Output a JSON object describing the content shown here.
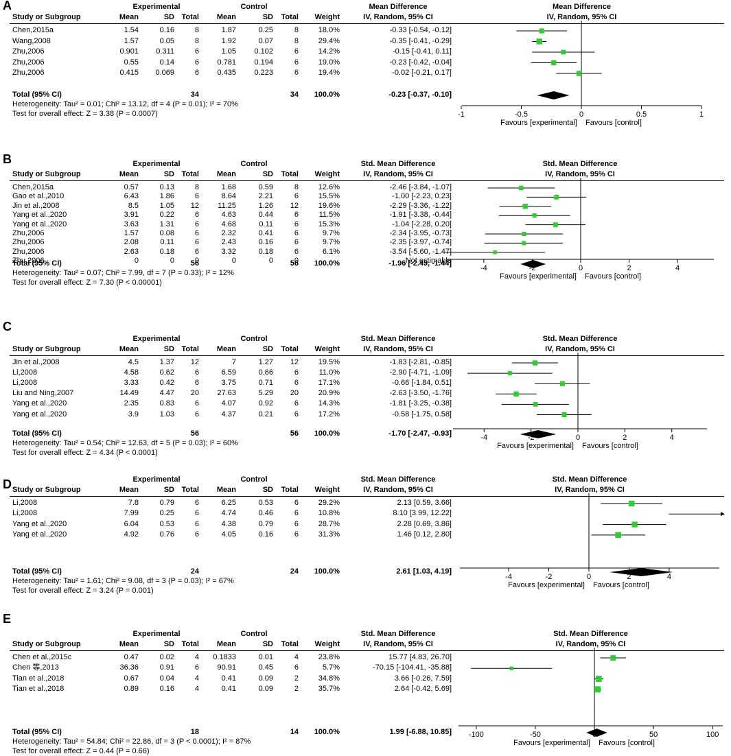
{
  "headers": {
    "study": "Study or Subgroup",
    "experimental": "Experimental",
    "control": "Control",
    "mean": "Mean",
    "sd": "SD",
    "total": "Total",
    "weight": "Weight",
    "ci_method": "IV, Random, 95% CI",
    "total_label": "Total (95% CI)",
    "fav_exp": "Favours [experimental]",
    "fav_ctrl": "Favours [control]"
  },
  "colors": {
    "marker": "#33cc33",
    "line": "#000000"
  },
  "chart_data": [
    {
      "label": "A",
      "type": "forest",
      "measure": "Mean Difference",
      "xlim": [
        -1,
        1
      ],
      "ticks": [
        "-1",
        "-0.5",
        "0",
        "0.5",
        "1"
      ],
      "studies": [
        {
          "name": "Chen,2015a",
          "em": "1.54",
          "esd": "0.16",
          "en": "8",
          "cm": "1.87",
          "csd": "0.25",
          "cn": "8",
          "w": "18.0%",
          "ci": "-0.33 [-0.54, -0.12]",
          "est": -0.33,
          "lo": -0.54,
          "hi": -0.12,
          "wt": 18.0
        },
        {
          "name": "Wang,2008",
          "em": "1.57",
          "esd": "0.05",
          "en": "8",
          "cm": "1.92",
          "csd": "0.07",
          "cn": "8",
          "w": "29.4%",
          "ci": "-0.35 [-0.41, -0.29]",
          "est": -0.35,
          "lo": -0.41,
          "hi": -0.29,
          "wt": 29.4
        },
        {
          "name": "Zhu,2006",
          "em": "0.901",
          "esd": "0.311",
          "en": "6",
          "cm": "1.05",
          "csd": "0.102",
          "cn": "6",
          "w": "14.2%",
          "ci": "-0.15 [-0.41, 0.11]",
          "est": -0.15,
          "lo": -0.41,
          "hi": 0.11,
          "wt": 14.2
        },
        {
          "name": "Zhu,2006",
          "em": "0.55",
          "esd": "0.14",
          "en": "6",
          "cm": "0.781",
          "csd": "0.194",
          "cn": "6",
          "w": "19.0%",
          "ci": "-0.23 [-0.42, -0.04]",
          "est": -0.23,
          "lo": -0.42,
          "hi": -0.04,
          "wt": 19.0
        },
        {
          "name": "Zhu,2006",
          "em": "0.415",
          "esd": "0.069",
          "en": "6",
          "cm": "0.435",
          "csd": "0.223",
          "cn": "6",
          "w": "19.4%",
          "ci": "-0.02 [-0.21, 0.17]",
          "est": -0.02,
          "lo": -0.21,
          "hi": 0.17,
          "wt": 19.4
        }
      ],
      "total": {
        "en": "34",
        "cn": "34",
        "w": "100.0%",
        "ci": "-0.23 [-0.37, -0.10]",
        "est": -0.23,
        "lo": -0.37,
        "hi": -0.1
      },
      "heterogeneity": "Heterogeneity: Tau² = 0.01; Chi² = 13.12, df = 4 (P = 0.01); I² = 70%",
      "overall": "Test for overall effect: Z = 3.38 (P = 0.0007)"
    },
    {
      "label": "B",
      "type": "forest",
      "measure": "Std. Mean Difference",
      "xlim": [
        -5.5,
        5.5
      ],
      "ticks": [
        "-4",
        "-2",
        "0",
        "2",
        "4"
      ],
      "studies": [
        {
          "name": "Chen,2015a",
          "em": "0.57",
          "esd": "0.13",
          "en": "8",
          "cm": "1.68",
          "csd": "0.59",
          "cn": "8",
          "w": "12.6%",
          "ci": "-2.46 [-3.84, -1.07]",
          "est": -2.46,
          "lo": -3.84,
          "hi": -1.07,
          "wt": 12.6
        },
        {
          "name": "Gao et al.,2010",
          "em": "6.43",
          "esd": "1.86",
          "en": "6",
          "cm": "8.64",
          "csd": "2.21",
          "cn": "6",
          "w": "15.5%",
          "ci": "-1.00 [-2.23, 0.23]",
          "est": -1.0,
          "lo": -2.23,
          "hi": 0.23,
          "wt": 15.5
        },
        {
          "name": "Jin et al.,2008",
          "em": "8.5",
          "esd": "1.05",
          "en": "12",
          "cm": "11.25",
          "csd": "1.26",
          "cn": "12",
          "w": "19.6%",
          "ci": "-2.29 [-3.36, -1.22]",
          "est": -2.29,
          "lo": -3.36,
          "hi": -1.22,
          "wt": 19.6
        },
        {
          "name": "Yang et al.,2020",
          "em": "3.91",
          "esd": "0.22",
          "en": "6",
          "cm": "4.63",
          "csd": "0.44",
          "cn": "6",
          "w": "11.5%",
          "ci": "-1.91 [-3.38, -0.44]",
          "est": -1.91,
          "lo": -3.38,
          "hi": -0.44,
          "wt": 11.5
        },
        {
          "name": "Yang et al.,2020",
          "em": "3.63",
          "esd": "1.31",
          "en": "6",
          "cm": "4.68",
          "csd": "0.11",
          "cn": "6",
          "w": "15.3%",
          "ci": "-1.04 [-2.28, 0.20]",
          "est": -1.04,
          "lo": -2.28,
          "hi": 0.2,
          "wt": 15.3
        },
        {
          "name": "Zhu,2006",
          "em": "1.57",
          "esd": "0.08",
          "en": "6",
          "cm": "2.32",
          "csd": "0.41",
          "cn": "6",
          "w": "9.7%",
          "ci": "-2.34 [-3.95, -0.73]",
          "est": -2.34,
          "lo": -3.95,
          "hi": -0.73,
          "wt": 9.7
        },
        {
          "name": "Zhu,2006",
          "em": "2.08",
          "esd": "0.11",
          "en": "6",
          "cm": "2.43",
          "csd": "0.16",
          "cn": "6",
          "w": "9.7%",
          "ci": "-2.35 [-3.97, -0.74]",
          "est": -2.35,
          "lo": -3.97,
          "hi": -0.74,
          "wt": 9.7
        },
        {
          "name": "Zhu,2006",
          "em": "2.63",
          "esd": "0.18",
          "en": "6",
          "cm": "3.32",
          "csd": "0.18",
          "cn": "6",
          "w": "6.1%",
          "ci": "-3.54 [-5.60, -1.47]",
          "est": -3.54,
          "lo": -5.6,
          "hi": -1.47,
          "wt": 6.1
        },
        {
          "name": "Zhu,2006",
          "em": "0",
          "esd": "0",
          "en": "0",
          "cm": "0",
          "csd": "0",
          "cn": "0",
          "w": "",
          "ci": "Not estimable",
          "est": null,
          "lo": null,
          "hi": null,
          "wt": 0
        }
      ],
      "total": {
        "en": "56",
        "cn": "56",
        "w": "100.0%",
        "ci": "-1.96 [-2.49, -1.44]",
        "est": -1.96,
        "lo": -2.49,
        "hi": -1.44
      },
      "heterogeneity": "Heterogeneity: Tau² = 0.07; Chi² = 7.99, df = 7 (P = 0.33); I² = 12%",
      "overall": "Test for overall effect: Z = 7.30 (P < 0.00001)"
    },
    {
      "label": "C",
      "type": "forest",
      "measure": "Std. Mean Difference",
      "xlim": [
        -5.5,
        5.5
      ],
      "ticks": [
        "-4",
        "-2",
        "0",
        "2",
        "4"
      ],
      "studies": [
        {
          "name": "Jin et al.,2008",
          "em": "4.5",
          "esd": "1.37",
          "en": "12",
          "cm": "7",
          "csd": "1.27",
          "cn": "12",
          "w": "19.5%",
          "ci": "-1.83 [-2.81, -0.85]",
          "est": -1.83,
          "lo": -2.81,
          "hi": -0.85,
          "wt": 19.5
        },
        {
          "name": "Li,2008",
          "em": "4.58",
          "esd": "0.62",
          "en": "6",
          "cm": "6.59",
          "csd": "0.66",
          "cn": "6",
          "w": "11.0%",
          "ci": "-2.90 [-4.71, -1.09]",
          "est": -2.9,
          "lo": -4.71,
          "hi": -1.09,
          "wt": 11.0
        },
        {
          "name": "Li,2008",
          "em": "3.33",
          "esd": "0.42",
          "en": "6",
          "cm": "3.75",
          "csd": "0.71",
          "cn": "6",
          "w": "17.1%",
          "ci": "-0.66 [-1.84, 0.51]",
          "est": -0.66,
          "lo": -1.84,
          "hi": 0.51,
          "wt": 17.1
        },
        {
          "name": "Liu and Ning,2007",
          "em": "14.49",
          "esd": "4.47",
          "en": "20",
          "cm": "27.63",
          "csd": "5.29",
          "cn": "20",
          "w": "20.9%",
          "ci": "-2.63 [-3.50, -1.76]",
          "est": -2.63,
          "lo": -3.5,
          "hi": -1.76,
          "wt": 20.9
        },
        {
          "name": "Yang et al.,2020",
          "em": "2.35",
          "esd": "0.83",
          "en": "6",
          "cm": "4.07",
          "csd": "0.92",
          "cn": "6",
          "w": "14.3%",
          "ci": "-1.81 [-3.25, -0.38]",
          "est": -1.81,
          "lo": -3.25,
          "hi": -0.38,
          "wt": 14.3
        },
        {
          "name": "Yang et al.,2020",
          "em": "3.9",
          "esd": "1.03",
          "en": "6",
          "cm": "4.37",
          "csd": "0.21",
          "cn": "6",
          "w": "17.2%",
          "ci": "-0.58 [-1.75, 0.58]",
          "est": -0.58,
          "lo": -1.75,
          "hi": 0.58,
          "wt": 17.2
        }
      ],
      "total": {
        "en": "56",
        "cn": "56",
        "w": "100.0%",
        "ci": "-1.70 [-2.47, -0.93]",
        "est": -1.7,
        "lo": -2.47,
        "hi": -0.93
      },
      "heterogeneity": "Heterogeneity: Tau² = 0.54; Chi² = 12.63, df = 5 (P = 0.03); I² = 60%",
      "overall": "Test for overall effect: Z = 4.34 (P < 0.0001)"
    },
    {
      "label": "D",
      "type": "forest",
      "measure": "Std. Mean Difference",
      "xlim": [
        -6.5,
        6.5
      ],
      "ticks": [
        "-4",
        "-2",
        "0",
        "2",
        "4"
      ],
      "studies": [
        {
          "name": "Li,2008",
          "em": "7.8",
          "esd": "0.79",
          "en": "6",
          "cm": "6.25",
          "csd": "0.53",
          "cn": "6",
          "w": "29.2%",
          "ci": "2.13 [0.59, 3.66]",
          "est": 2.13,
          "lo": 0.59,
          "hi": 3.66,
          "wt": 29.2
        },
        {
          "name": "Li,2008",
          "em": "7.99",
          "esd": "0.25",
          "en": "6",
          "cm": "4.74",
          "csd": "0.46",
          "cn": "6",
          "w": "10.8%",
          "ci": "8.10 [3.99, 12.22]",
          "est": 8.1,
          "lo": 3.99,
          "hi": 12.22,
          "wt": 10.8
        },
        {
          "name": "Yang et al.,2020",
          "em": "6.04",
          "esd": "0.53",
          "en": "6",
          "cm": "4.38",
          "csd": "0.79",
          "cn": "6",
          "w": "28.7%",
          "ci": "2.28 [0.69, 3.86]",
          "est": 2.28,
          "lo": 0.69,
          "hi": 3.86,
          "wt": 28.7
        },
        {
          "name": "Yang et al.,2020",
          "em": "4.92",
          "esd": "0.76",
          "en": "6",
          "cm": "4.05",
          "csd": "0.16",
          "cn": "6",
          "w": "31.3%",
          "ci": "1.46 [0.12, 2.80]",
          "est": 1.46,
          "lo": 0.12,
          "hi": 2.8,
          "wt": 31.3
        }
      ],
      "total": {
        "en": "24",
        "cn": "24",
        "w": "100.0%",
        "ci": "2.61 [1.03, 4.19]",
        "est": 2.61,
        "lo": 1.03,
        "hi": 4.19
      },
      "heterogeneity": "Heterogeneity: Tau² = 1.61; Chi² = 9.08, df = 3 (P = 0.03); I² = 67%",
      "overall": "Test for overall effect: Z = 3.24 (P = 0.001)"
    },
    {
      "label": "E",
      "type": "forest",
      "measure": "Std. Mean Difference",
      "xlim": [
        -115,
        100
      ],
      "ticks": [
        "-100",
        "-50",
        "0",
        "50",
        "100"
      ],
      "studies": [
        {
          "name": "Chen et al.,2015c",
          "em": "0.47",
          "esd": "0.02",
          "en": "4",
          "cm": "0.1833",
          "csd": "0.01",
          "cn": "4",
          "w": "23.8%",
          "ci": "15.77 [4.83, 26.70]",
          "est": 15.77,
          "lo": 4.83,
          "hi": 26.7,
          "wt": 23.8
        },
        {
          "name": "Chen 等,2013",
          "em": "36.36",
          "esd": "0.91",
          "en": "6",
          "cm": "90.91",
          "csd": "0.45",
          "cn": "6",
          "w": "5.7%",
          "ci": "-70.15 [-104.41, -35.88]",
          "est": -70.15,
          "lo": -104.41,
          "hi": -35.88,
          "wt": 5.7
        },
        {
          "name": "Tian et al.,2018",
          "em": "0.67",
          "esd": "0.04",
          "en": "4",
          "cm": "0.41",
          "csd": "0.09",
          "cn": "2",
          "w": "34.8%",
          "ci": "3.66 [-0.26, 7.59]",
          "est": 3.66,
          "lo": -0.26,
          "hi": 7.59,
          "wt": 34.8
        },
        {
          "name": "Tian et al.,2018",
          "em": "0.89",
          "esd": "0.16",
          "en": "4",
          "cm": "0.41",
          "csd": "0.09",
          "cn": "2",
          "w": "35.7%",
          "ci": "2.64 [-0.42, 5.69]",
          "est": 2.64,
          "lo": -0.42,
          "hi": 5.69,
          "wt": 35.7
        }
      ],
      "total": {
        "en": "18",
        "cn": "14",
        "w": "100.0%",
        "ci": "1.99 [-6.88, 10.85]",
        "est": 1.99,
        "lo": -6.88,
        "hi": 10.85
      },
      "heterogeneity": "Heterogeneity: Tau² = 54.84; Chi² = 22.86, df = 3 (P < 0.0001); I² = 87%",
      "overall": "Test for overall effect: Z = 0.44 (P = 0.66)"
    }
  ]
}
